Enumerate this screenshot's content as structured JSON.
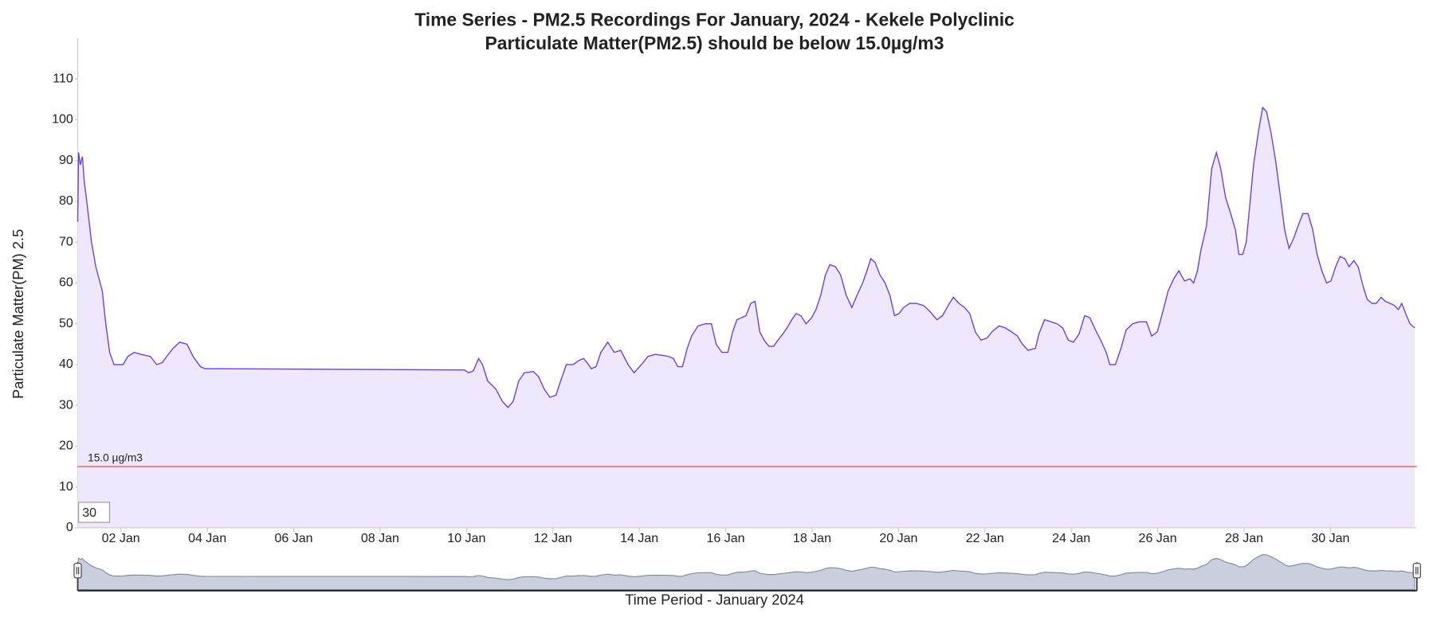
{
  "chart_data": {
    "type": "line",
    "title": "Time Series - PM2.5 Recordings For January, 2024 - Kekele Polyclinic",
    "subtitle": "Particulate Matter(PM2.5) should be below 15.0µg/m3",
    "y_label": "Particulate Matter(PM) 2.5",
    "x_label": "Time Period - January 2024",
    "zoom_input": "30",
    "color": "#6c3cf0",
    "fill_color": "#efe8fd",
    "threshold": {
      "value": 15,
      "label": "15.0 µg/m3",
      "color": "#e53935"
    },
    "xlim": [
      1,
      32
    ],
    "ylim": [
      0,
      120
    ],
    "xticks": [
      {
        "value": 2,
        "label": "02 Jan"
      },
      {
        "value": 4,
        "label": "04 Jan"
      },
      {
        "value": 6,
        "label": "06 Jan"
      },
      {
        "value": 8,
        "label": "08 Jan"
      },
      {
        "value": 10,
        "label": "10 Jan"
      },
      {
        "value": 12,
        "label": "12 Jan"
      },
      {
        "value": 14,
        "label": "14 Jan"
      },
      {
        "value": 16,
        "label": "16 Jan"
      },
      {
        "value": 18,
        "label": "18 Jan"
      },
      {
        "value": 20,
        "label": "20 Jan"
      },
      {
        "value": 22,
        "label": "22 Jan"
      },
      {
        "value": 24,
        "label": "24 Jan"
      },
      {
        "value": 26,
        "label": "26 Jan"
      },
      {
        "value": 28,
        "label": "28 Jan"
      },
      {
        "value": 30,
        "label": "30 Jan"
      }
    ],
    "yticks": [
      0,
      10,
      20,
      30,
      40,
      50,
      60,
      70,
      80,
      90,
      100,
      110
    ],
    "x": [
      1.0,
      1.02,
      1.06,
      1.11,
      1.15,
      1.21,
      1.32,
      1.42,
      1.57,
      1.65,
      1.74,
      1.84,
      2.05,
      2.16,
      2.31,
      2.47,
      2.68,
      2.83,
      2.96,
      3.06,
      3.21,
      3.36,
      3.53,
      3.67,
      3.84,
      3.95,
      9.95,
      10.05,
      10.16,
      10.28,
      10.37,
      10.49,
      10.68,
      10.83,
      10.96,
      11.08,
      11.21,
      11.34,
      11.55,
      11.67,
      11.8,
      11.93,
      12.07,
      12.18,
      12.31,
      12.47,
      12.6,
      12.71,
      12.79,
      12.89,
      13.0,
      13.11,
      13.27,
      13.42,
      13.57,
      13.74,
      13.88,
      14.05,
      14.2,
      14.37,
      14.52,
      14.68,
      14.79,
      14.89,
      15.0,
      15.11,
      15.21,
      15.36,
      15.53,
      15.67,
      15.78,
      15.91,
      16.05,
      16.16,
      16.26,
      16.37,
      16.47,
      16.58,
      16.68,
      16.79,
      16.89,
      17.0,
      17.11,
      17.21,
      17.32,
      17.42,
      17.53,
      17.63,
      17.74,
      17.86,
      17.99,
      18.09,
      18.2,
      18.31,
      18.41,
      18.54,
      18.66,
      18.79,
      18.92,
      19.04,
      19.17,
      19.27,
      19.36,
      19.46,
      19.57,
      19.69,
      19.8,
      19.91,
      20.01,
      20.12,
      20.26,
      20.41,
      20.58,
      20.73,
      20.89,
      21.02,
      21.15,
      21.27,
      21.4,
      21.53,
      21.65,
      21.78,
      21.91,
      22.05,
      22.16,
      22.33,
      22.47,
      22.62,
      22.75,
      22.87,
      23.0,
      23.17,
      23.25,
      23.38,
      23.53,
      23.67,
      23.8,
      23.93,
      24.05,
      24.18,
      24.31,
      24.43,
      24.56,
      24.68,
      24.81,
      24.89,
      25.02,
      25.15,
      25.27,
      25.42,
      25.57,
      25.74,
      25.86,
      25.99,
      26.12,
      26.24,
      26.37,
      26.49,
      26.62,
      26.75,
      26.83,
      26.92,
      27.0,
      27.13,
      27.25,
      27.36,
      27.46,
      27.57,
      27.69,
      27.8,
      27.88,
      27.97,
      28.05,
      28.14,
      28.22,
      28.33,
      28.43,
      28.52,
      28.62,
      28.73,
      28.83,
      28.94,
      29.04,
      29.15,
      29.25,
      29.36,
      29.48,
      29.59,
      29.69,
      29.8,
      29.91,
      30.01,
      30.12,
      30.22,
      30.33,
      30.43,
      30.54,
      30.64,
      30.76,
      30.85,
      30.96,
      31.06,
      31.17,
      31.27,
      31.38,
      31.48,
      31.57,
      31.65,
      31.76,
      31.84,
      31.95
    ],
    "values": [
      75,
      92,
      89,
      91,
      85,
      80,
      70,
      64,
      58,
      50,
      43,
      40,
      40,
      42,
      43,
      42.5,
      42,
      40,
      40.5,
      42,
      44,
      45.5,
      45,
      42,
      39.5,
      39,
      38.7,
      38,
      38.5,
      41.5,
      40,
      36,
      34,
      31,
      29.5,
      31,
      36,
      38,
      38.3,
      37,
      34,
      32,
      32.5,
      36,
      40,
      40,
      41,
      41.5,
      40.5,
      39,
      39.5,
      43,
      45.5,
      43,
      43.5,
      40,
      38,
      40,
      42,
      42.5,
      42.3,
      42,
      41.5,
      39.5,
      39.5,
      44,
      47,
      49.5,
      50,
      50,
      45,
      43,
      43,
      48,
      51,
      51.5,
      52,
      55,
      55.5,
      48,
      46,
      44.5,
      44.5,
      46,
      47.5,
      49,
      51,
      52.5,
      52,
      50,
      51.5,
      53.5,
      57,
      62,
      64.5,
      64,
      62,
      57,
      54,
      57,
      60,
      63,
      66,
      65,
      62,
      60,
      57,
      52,
      52.5,
      54,
      55,
      55,
      54.5,
      53,
      51,
      52,
      54.5,
      56.5,
      55,
      54,
      52.5,
      48,
      46,
      46.5,
      48,
      49.5,
      49,
      48,
      47,
      45,
      43.5,
      44,
      47.5,
      51,
      50.5,
      50,
      49,
      46,
      45.5,
      47.5,
      52,
      51.5,
      48.5,
      46,
      43,
      40,
      40,
      44,
      48.5,
      50,
      50.5,
      50.5,
      47,
      48,
      53,
      58,
      61,
      63,
      60.5,
      61,
      60,
      63,
      68,
      74,
      88,
      92,
      88,
      81,
      77,
      73,
      67,
      67,
      70,
      80,
      89,
      97,
      103,
      102,
      97,
      90,
      82,
      73,
      68.5,
      71,
      74,
      77,
      77,
      73,
      67,
      63,
      60,
      60.5,
      64,
      66.5,
      66,
      64,
      65.5,
      64,
      59,
      56,
      55,
      55,
      56.5,
      55.5,
      55,
      54.5,
      53.5,
      55,
      52,
      50,
      49
    ]
  }
}
